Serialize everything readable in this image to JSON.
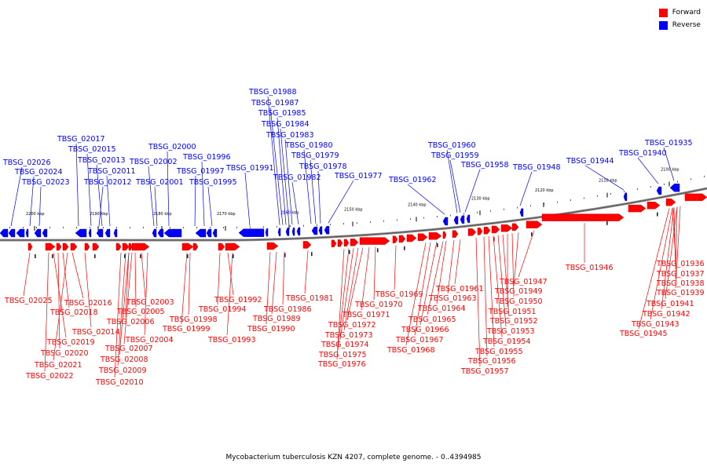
{
  "legend": {
    "forward_label": "Forward",
    "reverse_label": "Reverse",
    "forward_color": "#ff0000",
    "reverse_color": "#0000ff"
  },
  "caption": "Mycobacterium tuberculosis KZN 4207, complete genome. - 0..4394985",
  "ticks": [
    "2200 kbp",
    "2190 kbp",
    "2180 kbp",
    "2170 kbp",
    "2160 kbp",
    "2150 kbp",
    "2140 kbp",
    "2130 kbp",
    "2120 kbp",
    "2110 kbp",
    "2100 kbp"
  ],
  "reverse_genes": [
    "TBSG_02026",
    "TBSG_02024",
    "TBSG_02023",
    "TBSG_02017",
    "TBSG_02015",
    "TBSG_02013",
    "TBSG_02011",
    "TBSG_02012",
    "TBSG_02000",
    "TBSG_02002",
    "TBSG_02001",
    "TBSG_01996",
    "TBSG_01997",
    "TBSG_01995",
    "TBSG_01991",
    "TBSG_01988",
    "TBSG_01987",
    "TBSG_01985",
    "TBSG_01984",
    "TBSG_01983",
    "TBSG_01982",
    "TBSG_01980",
    "TBSG_01979",
    "TBSG_01978",
    "TBSG_01977",
    "TBSG_01962",
    "TBSG_01960",
    "TBSG_01959",
    "TBSG_01958",
    "TBSG_01948",
    "TBSG_01944",
    "TBSG_01940",
    "TBSG_01935"
  ],
  "forward_genes": [
    "TBSG_02025",
    "TBSG_02016",
    "TBSG_02018",
    "TBSG_02014",
    "TBSG_02019",
    "TBSG_02020",
    "TBSG_02021",
    "TBSG_02022",
    "TBSG_02003",
    "TBSG_02005",
    "TBSG_02006",
    "TBSG_02004",
    "TBSG_02007",
    "TBSG_02008",
    "TBSG_02009",
    "TBSG_02010",
    "TBSG_01998",
    "TBSG_01999",
    "TBSG_01992",
    "TBSG_01994",
    "TBSG_01993",
    "TBSG_01986",
    "TBSG_01989",
    "TBSG_01990",
    "TBSG_01981",
    "TBSG_01970",
    "TBSG_01971",
    "TBSG_01972",
    "TBSG_01973",
    "TBSG_01974",
    "TBSG_01975",
    "TBSG_01976",
    "TBSG_01969",
    "TBSG_01961",
    "TBSG_01963",
    "TBSG_01964",
    "TBSG_01965",
    "TBSG_01966",
    "TBSG_01967",
    "TBSG_01968",
    "TBSG_01947",
    "TBSG_01949",
    "TBSG_01950",
    "TBSG_01951",
    "TBSG_01952",
    "TBSG_01953",
    "TBSG_01954",
    "TBSG_01955",
    "TBSG_01956",
    "TBSG_01957",
    "TBSG_01946",
    "TBSG_01936",
    "TBSG_01937",
    "TBSG_01938",
    "TBSG_01939",
    "TBSG_01941",
    "TBSG_01942",
    "TBSG_01943",
    "TBSG_01945"
  ]
}
